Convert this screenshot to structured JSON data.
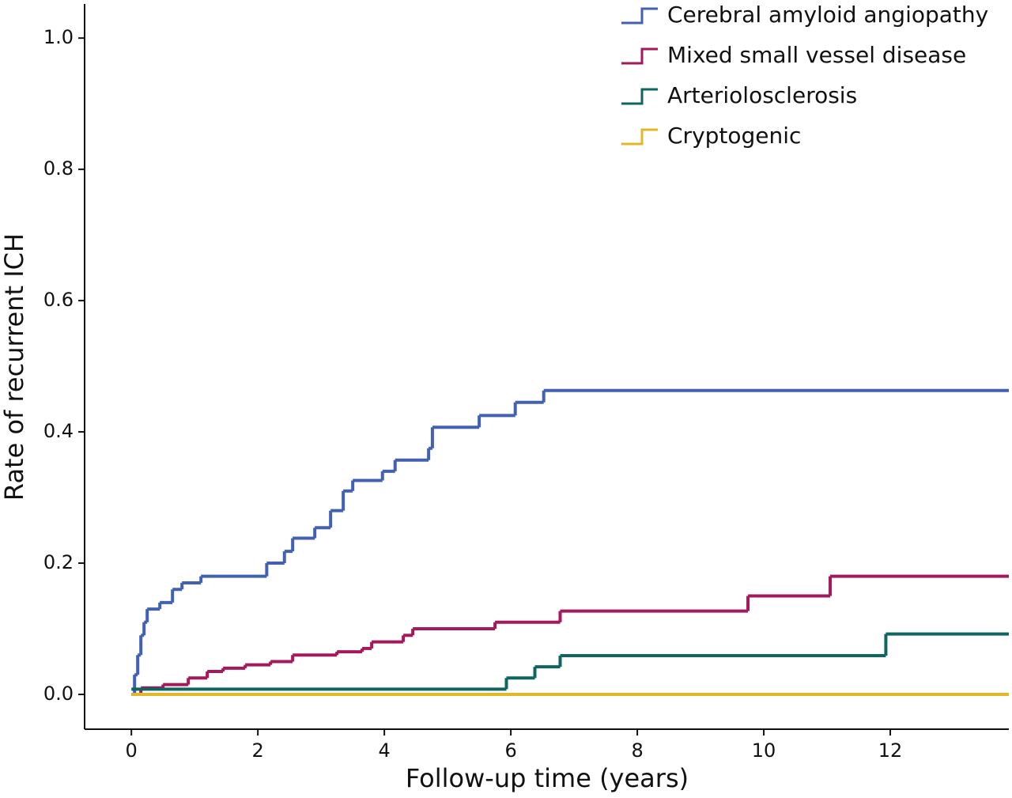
{
  "chart_data": {
    "type": "step",
    "x_label": "Follow-up time (years)",
    "y_label": "Rate of recurrent ICH",
    "xlim": [
      -0.74,
      13.875
    ],
    "ylim": [
      -0.053,
      1.052
    ],
    "xticks": [
      0,
      2,
      4,
      6,
      8,
      10,
      12
    ],
    "yticks": [
      {
        "value": 0,
        "label": "0.0"
      },
      0.2,
      0.4,
      0.6,
      0.8,
      {
        "value": 1,
        "label": "1.0"
      }
    ],
    "legend": "top-right",
    "series": [
      {
        "name": "Cerebral amyloid angiopathy",
        "color": "#4361b3",
        "x": [
          0,
          0.05,
          0.1,
          0.15,
          0.2,
          0.25,
          0.45,
          0.65,
          0.8,
          1.1,
          2.14,
          2.42,
          2.55,
          2.9,
          3.15,
          3.35,
          3.5,
          3.97,
          4.17,
          4.7,
          4.76,
          5.5,
          6.07,
          6.52,
          13.875
        ],
        "values": [
          0,
          0.03,
          0.06,
          0.09,
          0.11,
          0.13,
          0.14,
          0.16,
          0.17,
          0.18,
          0.2,
          0.218,
          0.238,
          0.254,
          0.28,
          0.31,
          0.326,
          0.34,
          0.357,
          0.375,
          0.407,
          0.425,
          0.445,
          0.463,
          0.463
        ]
      },
      {
        "name": "Mixed small vessel disease",
        "color": "#a3195b",
        "x": [
          0,
          0.15,
          0.5,
          0.9,
          1.2,
          1.45,
          1.8,
          2.2,
          2.55,
          3.25,
          3.65,
          3.8,
          4.3,
          4.45,
          5.75,
          6.78,
          9.75,
          11.05,
          13.875
        ],
        "values": [
          0,
          0.01,
          0.015,
          0.025,
          0.035,
          0.04,
          0.045,
          0.05,
          0.06,
          0.065,
          0.07,
          0.08,
          0.09,
          0.1,
          0.11,
          0.127,
          0.15,
          0.18,
          0.18
        ]
      },
      {
        "name": "Arteriolosclerosis",
        "color": "#0f6560",
        "x": [
          0,
          5.93,
          6.38,
          6.78,
          11.93,
          13.875
        ],
        "values": [
          0.008,
          0.025,
          0.042,
          0.059,
          0.092,
          0.092
        ]
      },
      {
        "name": "Cryptogenic",
        "color": "#e0b82a",
        "x": [
          0,
          13.875
        ],
        "values": [
          0,
          0
        ]
      }
    ]
  }
}
